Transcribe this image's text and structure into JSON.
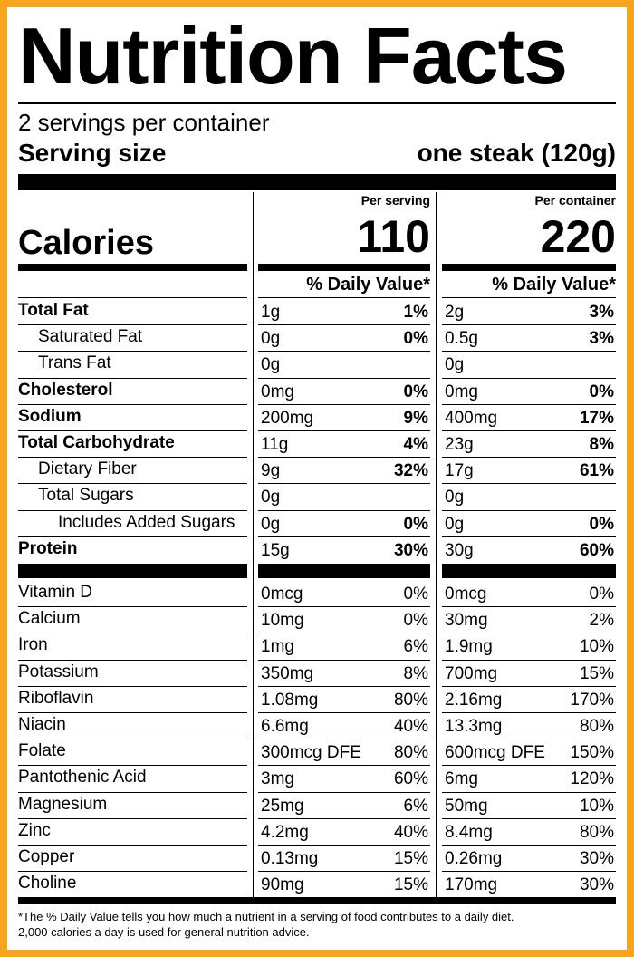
{
  "title": "Nutrition Facts",
  "servings": "2 servings per container",
  "serving_size": {
    "label": "Serving size",
    "value": "one steak (120g)"
  },
  "calories": {
    "label": "Calories",
    "per_serving_header": "Per serving",
    "per_serving": 110,
    "per_container_header": "Per container",
    "per_container": 220
  },
  "daily_value_header": "% Daily Value*",
  "nutrients": [
    {
      "name": "Total Fat",
      "serving_amount": "1g",
      "serving_dv": "1%",
      "container_amount": "2g",
      "container_dv": "3%"
    },
    {
      "name": "Saturated Fat",
      "serving_amount": "0g",
      "serving_dv": "0%",
      "container_amount": "0.5g",
      "container_dv": "3%"
    },
    {
      "name": "Trans Fat",
      "serving_amount": "0g",
      "container_amount": "0g"
    },
    {
      "name": "Cholesterol",
      "serving_amount": "0mg",
      "serving_dv": "0%",
      "container_amount": "0mg",
      "container_dv": "0%"
    },
    {
      "name": "Sodium",
      "serving_amount": "200mg",
      "serving_dv": "9%",
      "container_amount": "400mg",
      "container_dv": "17%"
    },
    {
      "name": "Total Carbohydrate",
      "serving_amount": "11g",
      "serving_dv": "4%",
      "container_amount": "23g",
      "container_dv": "8%"
    },
    {
      "name": "Dietary Fiber",
      "serving_amount": "9g",
      "serving_dv": "32%",
      "container_amount": "17g",
      "container_dv": "61%"
    },
    {
      "name": "Total Sugars",
      "serving_amount": "0g",
      "container_amount": "0g"
    },
    {
      "name": "Includes Added Sugars",
      "serving_amount": "0g",
      "serving_dv": "0%",
      "container_amount": "0g",
      "container_dv": "0%"
    },
    {
      "name": "Protein",
      "serving_amount": "15g",
      "serving_dv": "30%",
      "container_amount": "30g",
      "container_dv": "60%"
    }
  ],
  "vitamins": [
    {
      "name": "Vitamin D",
      "serving_amount": "0mcg",
      "serving_dv": "0%",
      "container_amount": "0mcg",
      "container_dv": "0%"
    },
    {
      "name": "Calcium",
      "serving_amount": "10mg",
      "serving_dv": "0%",
      "container_amount": "30mg",
      "container_dv": "2%"
    },
    {
      "name": "Iron",
      "serving_amount": "1mg",
      "serving_dv": "6%",
      "container_amount": "1.9mg",
      "container_dv": "10%"
    },
    {
      "name": "Potassium",
      "serving_amount": "350mg",
      "serving_dv": "8%",
      "container_amount": "700mg",
      "container_dv": "15%"
    },
    {
      "name": "Riboflavin",
      "serving_amount": "1.08mg",
      "serving_dv": "80%",
      "container_amount": "2.16mg",
      "container_dv": "170%"
    },
    {
      "name": "Niacin",
      "serving_amount": "6.6mg",
      "serving_dv": "40%",
      "container_amount": "13.3mg",
      "container_dv": "80%"
    },
    {
      "name": "Folate",
      "serving_amount": "300mcg DFE",
      "serving_dv": "80%",
      "container_amount": "600mcg DFE",
      "container_dv": "150%"
    },
    {
      "name": "Pantothenic Acid",
      "serving_amount": "3mg",
      "serving_dv": "60%",
      "container_amount": "6mg",
      "container_dv": "120%"
    },
    {
      "name": "Magnesium",
      "serving_amount": "25mg",
      "serving_dv": "6%",
      "container_amount": "50mg",
      "container_dv": "10%"
    },
    {
      "name": "Zinc",
      "serving_amount": "4.2mg",
      "serving_dv": "40%",
      "container_amount": "8.4mg",
      "container_dv": "80%"
    },
    {
      "name": "Copper",
      "serving_amount": "0.13mg",
      "serving_dv": "15%",
      "container_amount": "0.26mg",
      "container_dv": "30%"
    },
    {
      "name": "Choline",
      "serving_amount": "90mg",
      "serving_dv": "15%",
      "container_amount": "170mg",
      "container_dv": "30%"
    }
  ],
  "footnote": [
    "*The % Daily Value tells you how much a nutrient in a serving of food contributes to a daily diet.",
    "2,000 calories a day is used for general nutrition advice."
  ]
}
